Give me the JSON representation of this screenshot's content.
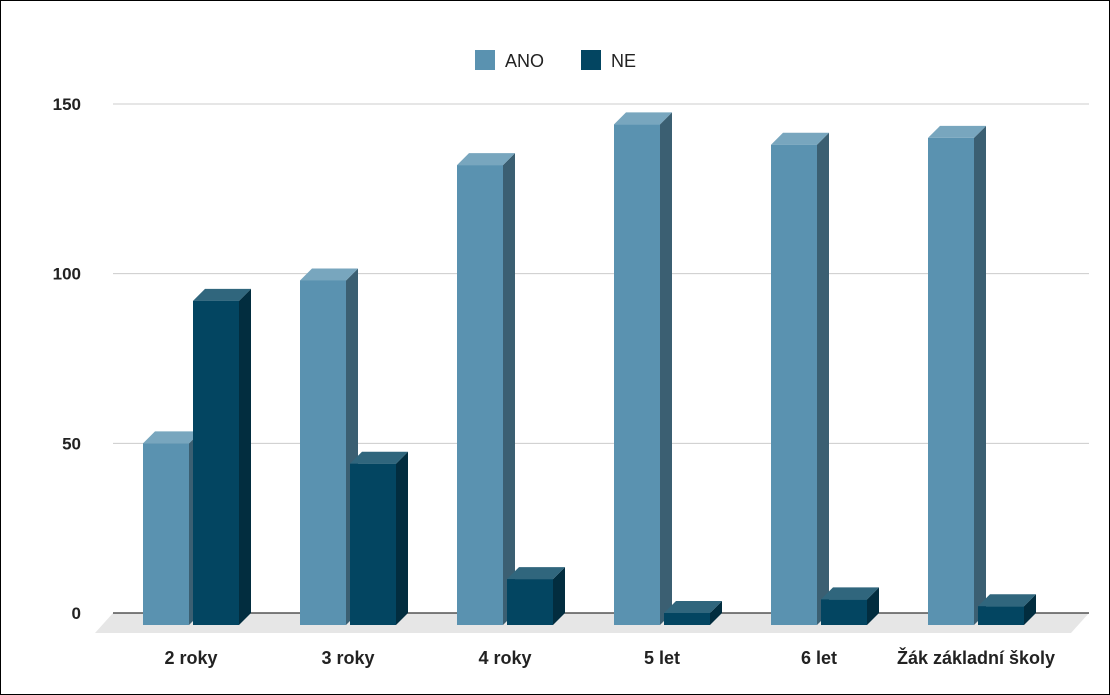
{
  "chart_data": {
    "type": "bar",
    "style": "3d-grouped",
    "categories": [
      "2 roky",
      "3 roky",
      "4 roky",
      "5 let",
      "6 let",
      "Žák základní školy"
    ],
    "series": [
      {
        "name": "ANO",
        "values": [
          50,
          98,
          132,
          144,
          138,
          140
        ],
        "color": "#5a92b0"
      },
      {
        "name": "NE",
        "values": [
          92,
          44,
          10,
          0,
          4,
          2
        ],
        "color": "#034561"
      }
    ],
    "yticks": [
      0,
      50,
      100,
      150
    ],
    "ylim": [
      0,
      150
    ],
    "grid": true,
    "legend_position": "top-center"
  }
}
